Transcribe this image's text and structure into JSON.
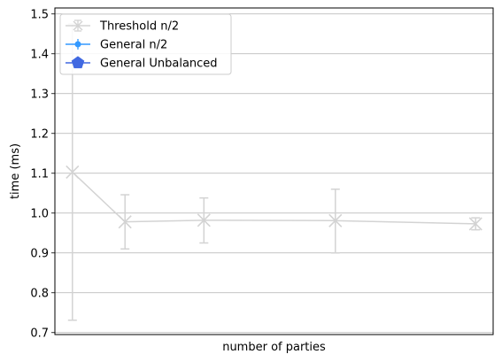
{
  "chart_data": {
    "type": "line",
    "title": "",
    "xlabel": "number of parties",
    "ylabel": "time (ms)",
    "ylim": [
      0.695,
      1.515
    ],
    "xlim": [
      0,
      10
    ],
    "y_ticks": [
      "0.7",
      "0.8",
      "0.9",
      "1.0",
      "1.1",
      "1.2",
      "1.3",
      "1.4",
      "1.5"
    ],
    "x_tick_labels_visible": false,
    "grid": "y",
    "legend_position": "top-left",
    "series": [
      {
        "name": "Threshold n/2",
        "marker": "x",
        "color": "#d3d3d3",
        "x": [
          0.4,
          1.6,
          3.4,
          6.4,
          9.6
        ],
        "y": [
          1.103,
          0.978,
          0.982,
          0.981,
          0.973
        ],
        "err_low": [
          0.731,
          0.91,
          0.925,
          0.9,
          0.958
        ],
        "err_high": [
          1.475,
          1.046,
          1.038,
          1.06,
          0.988
        ]
      },
      {
        "name": "General n/2",
        "marker": "o",
        "color": "#3399ff",
        "x": [],
        "y": []
      },
      {
        "name": "General Unbalanced",
        "marker": "pentagon",
        "color": "#4169e1",
        "x": [],
        "y": []
      }
    ]
  }
}
